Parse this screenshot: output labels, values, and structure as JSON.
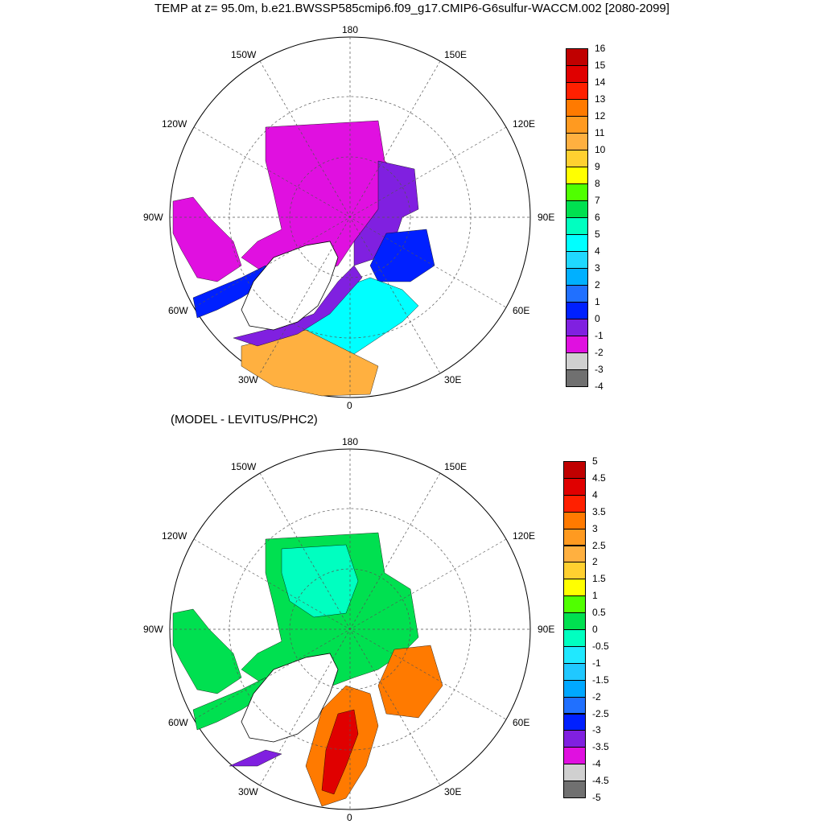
{
  "title": "TEMP at z=  95.0m, b.e21.BWSSP585cmip6.f09_g17.CMIP6-G6sulfur-WACCM.002 [2080-2099]",
  "subtitle": "(MODEL - LEVITUS/PHC2)",
  "longitude_labels": {
    "top": "180",
    "bottom": "0",
    "left": "90W",
    "right": "90E",
    "upper_left_1": "150W",
    "upper_left_2": "120W",
    "upper_right_1": "150E",
    "upper_right_2": "120E",
    "lower_left_1": "60W",
    "lower_left_2": "30W",
    "lower_right_1": "60E",
    "lower_right_2": "30E"
  },
  "colorbar_top": {
    "labels": [
      "16",
      "15",
      "14",
      "13",
      "12",
      "11",
      "10",
      "9",
      "8",
      "7",
      "6",
      "5",
      "4",
      "3",
      "2",
      "1",
      "0",
      "-1",
      "-2",
      "-3",
      "-4"
    ],
    "colors": [
      "#c00000",
      "#e00000",
      "#ff2000",
      "#ff7a00",
      "#ff9a20",
      "#ffb040",
      "#ffd030",
      "#ffff00",
      "#50ff00",
      "#00e050",
      "#00ffc0",
      "#00ffff",
      "#20d8ff",
      "#00b0ff",
      "#2070ff",
      "#0020ff",
      "#8020e0",
      "#e010e0",
      "#d0d0d0",
      "#707070"
    ]
  },
  "colorbar_bottom": {
    "labels": [
      "5",
      "4.5",
      "4",
      "3.5",
      "3",
      "2.5",
      "2",
      "1.5",
      "1",
      "0.5",
      "0",
      "-0.5",
      "-1",
      "-1.5",
      "-2",
      "-2.5",
      "-3",
      "-3.5",
      "-4",
      "-4.5",
      "-5"
    ],
    "colors": [
      "#c00000",
      "#e00000",
      "#ff2000",
      "#ff7a00",
      "#ff9a20",
      "#ffb040",
      "#ffd030",
      "#ffff00",
      "#50ff00",
      "#00e050",
      "#00ffc0",
      "#20e8ff",
      "#20c8ff",
      "#00a8ff",
      "#2070ff",
      "#0020ff",
      "#8020e0",
      "#e010e0",
      "#d0d0d0",
      "#707070"
    ]
  },
  "fill_colors": {
    "polar_basin_top": "#e010e0",
    "eurasian_basin_top": "#8020e0",
    "barents_top": "#0020ff",
    "norwegian_top": "#00ffff",
    "atlantic_top": "#ffb040",
    "basin_bottom": "#00e050",
    "center_bottom": "#00ffc0",
    "nordic_warm_bottom": "#ff7a00",
    "nordic_core_bottom": "#e00000"
  }
}
